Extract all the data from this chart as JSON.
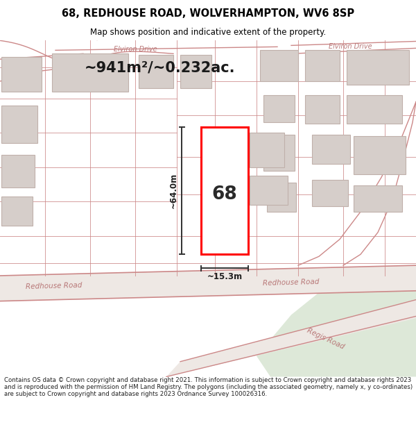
{
  "title": "68, REDHOUSE ROAD, WOLVERHAMPTON, WV6 8SP",
  "subtitle": "Map shows position and indicative extent of the property.",
  "footer": "Contains OS data © Crown copyright and database right 2021. This information is subject to Crown copyright and database rights 2023 and is reproduced with the permission of HM Land Registry. The polygons (including the associated geometry, namely x, y co-ordinates) are subject to Crown copyright and database rights 2023 Ordnance Survey 100026316.",
  "area_text": "~941m²/~0.232ac.",
  "width_label": "~15.3m",
  "height_label": "~64.0m",
  "plot_number": "68",
  "map_bg": "#f2ebe6",
  "building_fill": "#d6ceca",
  "building_edge": "#c0b0aa",
  "road_fill": "#eee8e4",
  "road_edge": "#d4908c",
  "highlight_fill": "#ffffff",
  "highlight_edge": "#ff0000",
  "green_fill": "#dde8d8",
  "dim_color": "#303030",
  "title_color": "#000000",
  "road_label_color": "#b87878",
  "footer_color": "#202020",
  "road_line_color": "#cc8888"
}
